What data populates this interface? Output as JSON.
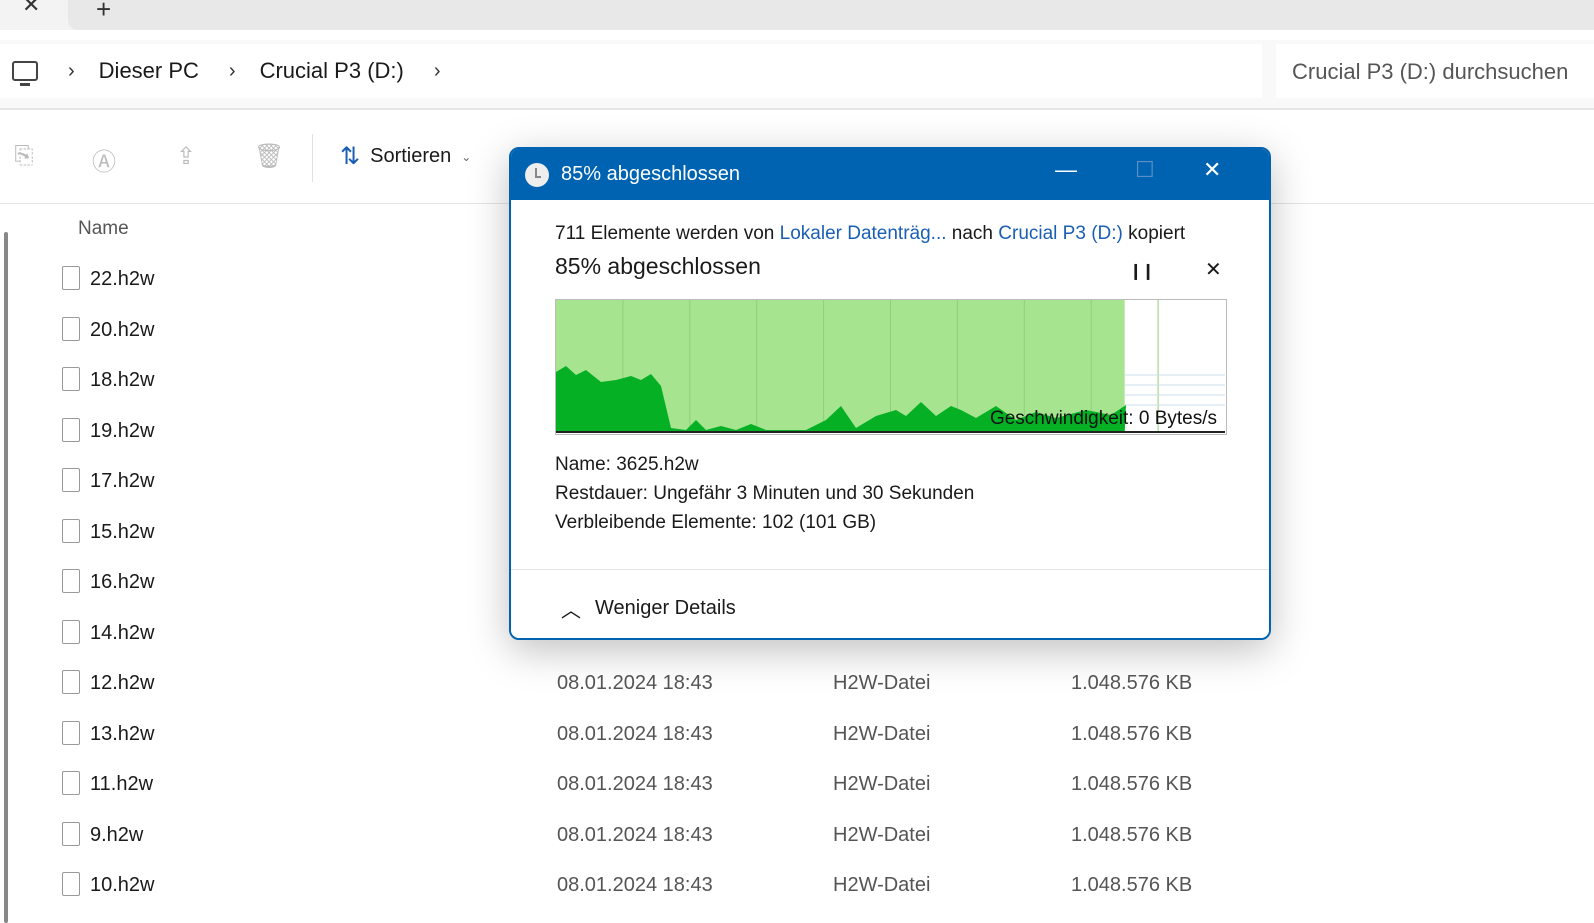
{
  "tabbar": {
    "close_glyph": "✕",
    "new_tab_glyph": "+"
  },
  "breadcrumb": {
    "items": [
      "Dieser PC",
      "Crucial P3 (D:)"
    ]
  },
  "search": {
    "placeholder": "Crucial P3 (D:) durchsuchen"
  },
  "toolbar": {
    "icons": [
      "paste-icon",
      "rename-icon",
      "share-icon",
      "delete-icon"
    ],
    "sort_label": "Sortieren"
  },
  "list": {
    "column_name": "Name",
    "rows": [
      {
        "name": "22.h2w",
        "date": "",
        "type": "",
        "size": ""
      },
      {
        "name": "20.h2w",
        "date": "",
        "type": "",
        "size": ""
      },
      {
        "name": "18.h2w",
        "date": "",
        "type": "",
        "size": ""
      },
      {
        "name": "19.h2w",
        "date": "",
        "type": "",
        "size": ""
      },
      {
        "name": "17.h2w",
        "date": "",
        "type": "",
        "size": ""
      },
      {
        "name": "15.h2w",
        "date": "",
        "type": "",
        "size": ""
      },
      {
        "name": "16.h2w",
        "date": "",
        "type": "",
        "size": ""
      },
      {
        "name": "14.h2w",
        "date": "",
        "type": "",
        "size": ""
      },
      {
        "name": "12.h2w",
        "date": "08.01.2024 18:43",
        "type": "H2W-Datei",
        "size": "1.048.576 KB"
      },
      {
        "name": "13.h2w",
        "date": "08.01.2024 18:43",
        "type": "H2W-Datei",
        "size": "1.048.576 KB"
      },
      {
        "name": "11.h2w",
        "date": "08.01.2024 18:43",
        "type": "H2W-Datei",
        "size": "1.048.576 KB"
      },
      {
        "name": "9.h2w",
        "date": "08.01.2024 18:43",
        "type": "H2W-Datei",
        "size": "1.048.576 KB"
      },
      {
        "name": "10.h2w",
        "date": "08.01.2024 18:43",
        "type": "H2W-Datei",
        "size": "1.048.576 KB"
      }
    ]
  },
  "dialog": {
    "title": "85% abgeschlossen",
    "desc_prefix": "711 Elemente werden von",
    "source": "Lokaler Datenträg...",
    "desc_mid": "nach",
    "target": "Crucial P3 (D:)",
    "desc_suffix": "kopiert",
    "progress_label": "85% abgeschlossen",
    "progress_percent": 85,
    "speed": "Geschwindigkeit: 0 Bytes/s",
    "name_line": "Name: 3625.h2w",
    "remaining_time": "Restdauer: Ungefähr 3 Minuten und 30 Sekunden",
    "remaining_items": "Verbleibende Elemente: 102 (101 GB)",
    "less_details": "Weniger Details",
    "colors": {
      "accent": "#0063b1",
      "progress_fill": "#a6e490",
      "speed_fill": "#06b025"
    }
  }
}
